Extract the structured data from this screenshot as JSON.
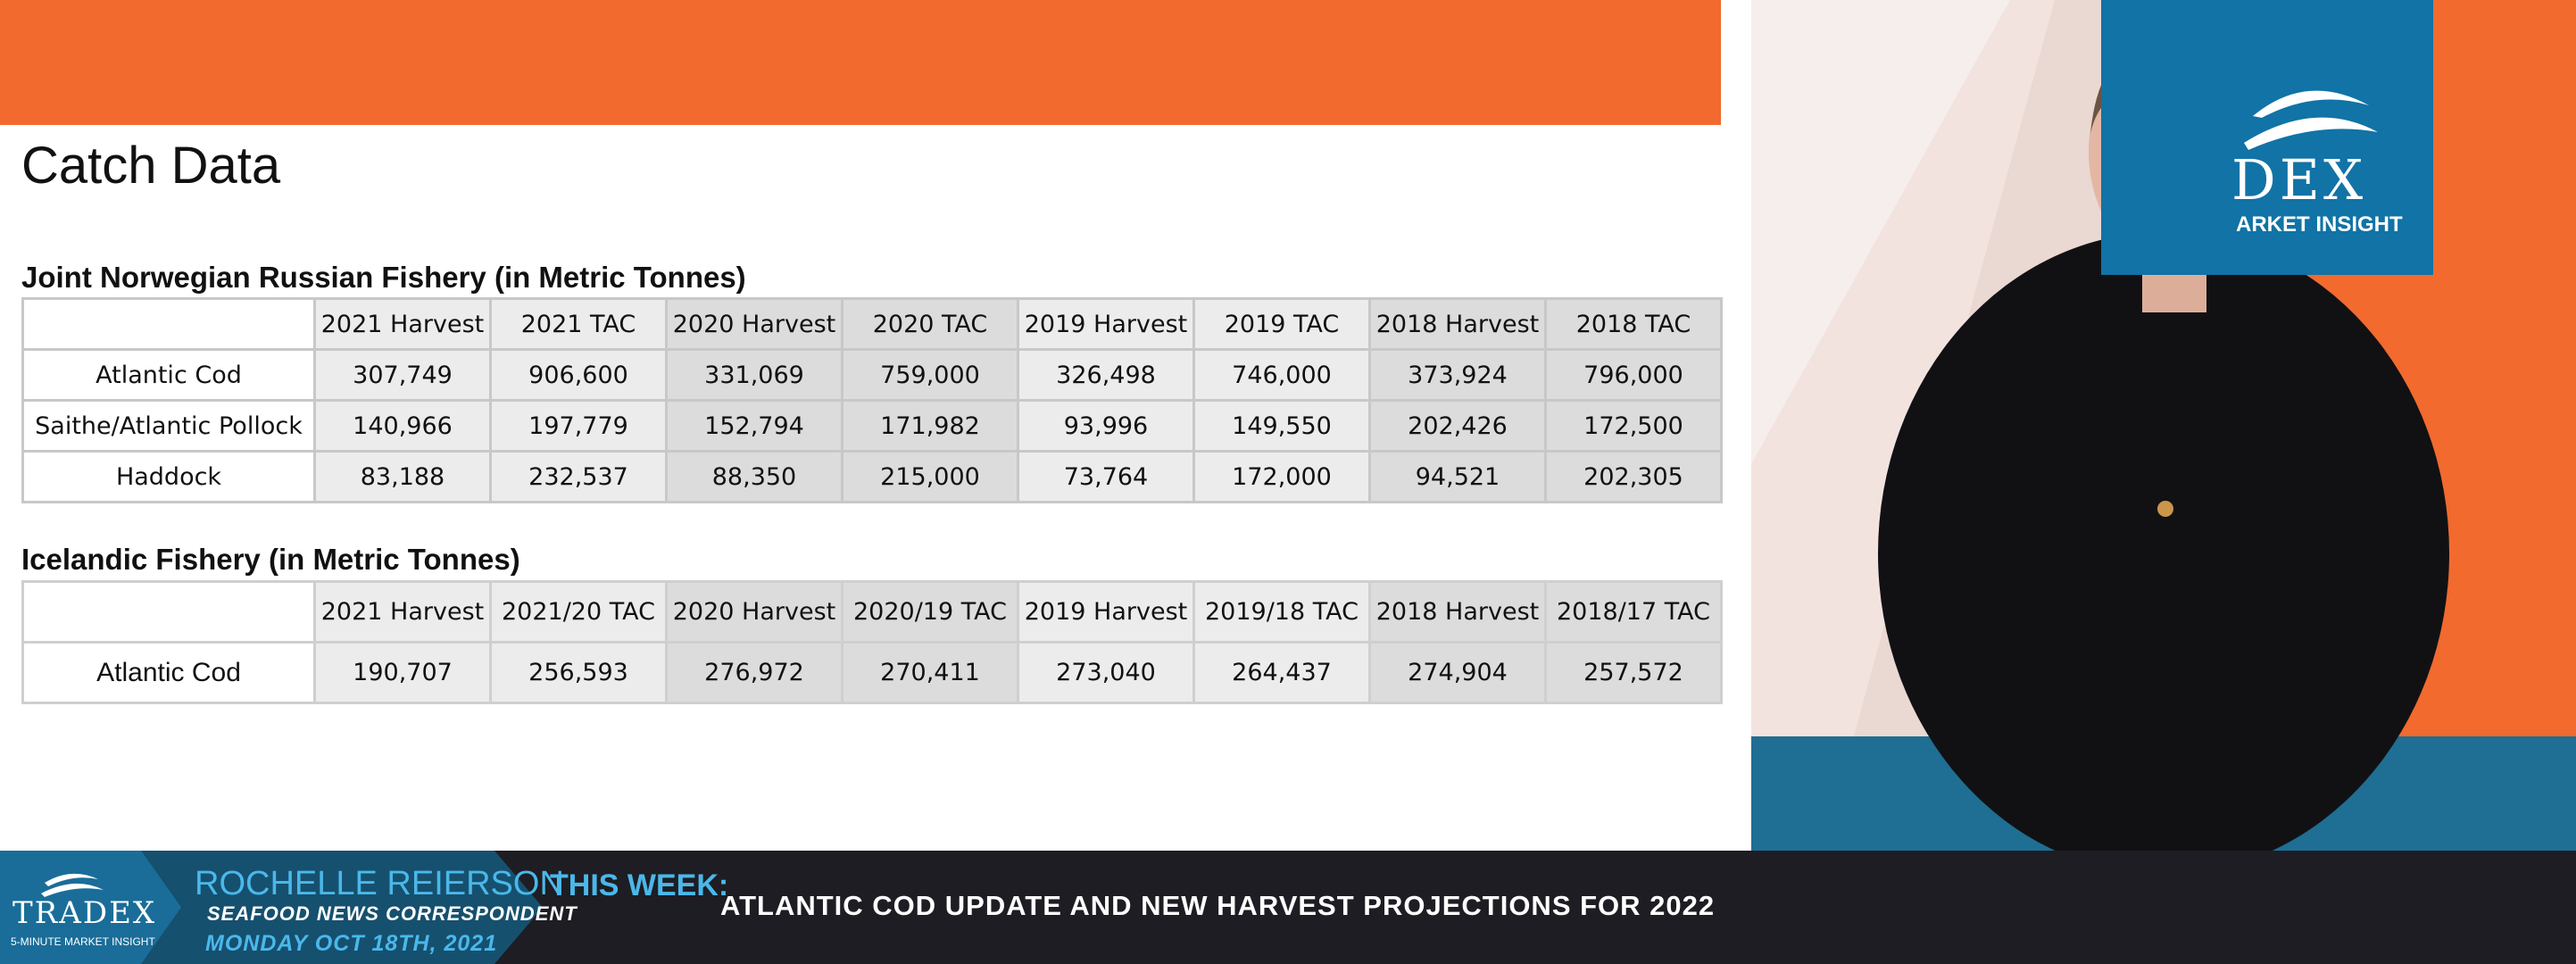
{
  "slide": {
    "title": "Catch Data",
    "norwegian": {
      "title": "Joint Norwegian Russian Fishery (in Metric Tonnes)",
      "headers": [
        "2021 Harvest",
        "2021 TAC",
        "2020 Harvest",
        "2020 TAC",
        "2019 Harvest",
        "2019 TAC",
        "2018 Harvest",
        "2018 TAC"
      ],
      "rows": [
        {
          "label": "Atlantic Cod",
          "values": [
            "307,749",
            "906,600",
            "331,069",
            "759,000",
            "326,498",
            "746,000",
            "373,924",
            "796,000"
          ]
        },
        {
          "label": "Saithe/Atlantic Pollock",
          "values": [
            "140,966",
            "197,779",
            "152,794",
            "171,982",
            "93,996",
            "149,550",
            "202,426",
            "172,500"
          ]
        },
        {
          "label": "Haddock",
          "values": [
            "83,188",
            "232,537",
            "88,350",
            "215,000",
            "73,764",
            "172,000",
            "94,521",
            "202,305"
          ]
        }
      ]
    },
    "icelandic": {
      "title": "Icelandic Fishery (in Metric Tonnes)",
      "headers": [
        "2021 Harvest",
        "2021/20 TAC",
        "2020 Harvest",
        "2020/19 TAC",
        "2019 Harvest",
        "2019/18 TAC",
        "2018 Harvest",
        "2018/17 TAC"
      ],
      "rows": [
        {
          "label": "Atlantic Cod",
          "values": [
            "190,707",
            "256,593",
            "276,972",
            "270,411",
            "273,040",
            "264,437",
            "274,904",
            "257,572"
          ]
        }
      ]
    }
  },
  "brand": {
    "logo_text": "DEX",
    "logo_sub": "ARKET INSIGHT",
    "colors": {
      "orange": "#f26a2e",
      "blue": "#1173a6",
      "dark": "#1e1d23",
      "accent": "#4ab8ea"
    }
  },
  "lower_third": {
    "logo_name": "TRADEX",
    "logo_sub": "5-MINUTE MARKET INSIGHT",
    "presenter_name": "ROCHELLE REIERSON",
    "presenter_role": "SEAFOOD NEWS CORRESPONDENT",
    "date": "MONDAY OCT 18TH, 2021",
    "this_week_label": "THIS WEEK:",
    "headline": "ATLANTIC COD UPDATE AND NEW HARVEST PROJECTIONS FOR 2022"
  },
  "icons": [
    "fish-logo-icon"
  ]
}
